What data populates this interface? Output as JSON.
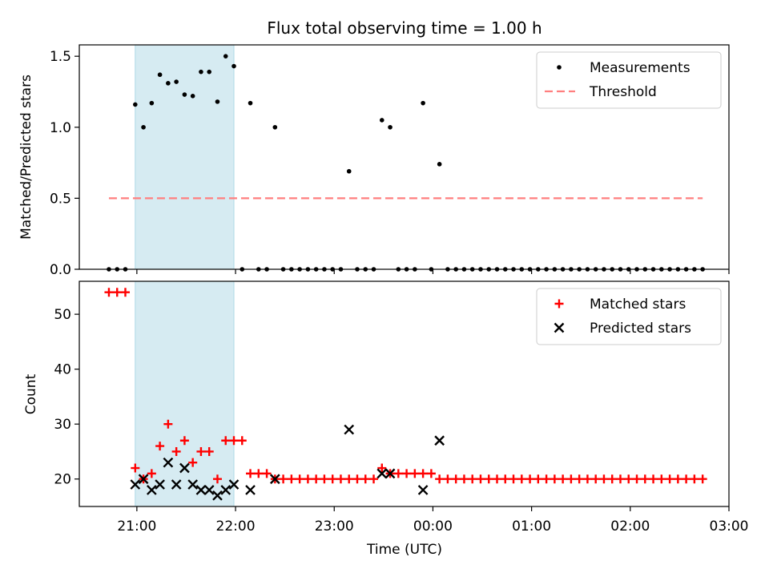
{
  "chart_data": {
    "title": "Flux total observing time = 1.00 h",
    "shaded_band": {
      "start": "20:59",
      "end": "21:59",
      "color": "#add8e6"
    },
    "x_axis": {
      "label": "Time (UTC)",
      "ticks": [
        "21:00",
        "22:00",
        "23:00",
        "00:00",
        "01:00",
        "02:00",
        "03:00"
      ],
      "range": [
        "20:25",
        "03:00"
      ]
    },
    "panels": [
      {
        "type": "scatter",
        "ylabel": "Matched/Predicted stars",
        "ylim": [
          0,
          1.58
        ],
        "yticks": [
          "0.0",
          "0.5",
          "1.0",
          "1.5"
        ],
        "legend_position": "top-right",
        "series": [
          {
            "name": "Measurements",
            "kind": "scatter",
            "color": "#000000",
            "times": [
              "20:43",
              "20:48",
              "20:53",
              "20:59",
              "21:04",
              "21:09",
              "21:14",
              "21:19",
              "21:24",
              "21:29",
              "21:34",
              "21:39",
              "21:44",
              "21:49",
              "21:54",
              "21:59",
              "22:04",
              "22:09",
              "22:14",
              "22:19",
              "22:24",
              "22:29",
              "22:34",
              "22:39",
              "22:44",
              "22:49",
              "22:54",
              "22:59",
              "23:04",
              "23:09",
              "23:14",
              "23:19",
              "23:24",
              "23:29",
              "23:34",
              "23:39",
              "23:44",
              "23:49",
              "23:54",
              "23:59",
              "00:04",
              "00:09",
              "00:14",
              "00:19",
              "00:24",
              "00:29",
              "00:34",
              "00:39",
              "00:44",
              "00:49",
              "00:54",
              "00:59",
              "01:04",
              "01:09",
              "01:14",
              "01:19",
              "01:24",
              "01:29",
              "01:34",
              "01:39",
              "01:44",
              "01:49",
              "01:54",
              "01:59",
              "02:04",
              "02:09",
              "02:14",
              "02:19",
              "02:24",
              "02:29",
              "02:34",
              "02:39",
              "02:44"
            ],
            "values": [
              0,
              0,
              0,
              1.16,
              1.0,
              1.17,
              1.37,
              1.31,
              1.32,
              1.23,
              1.22,
              1.39,
              1.39,
              1.18,
              1.5,
              1.43,
              0,
              1.17,
              0,
              0,
              1.0,
              0,
              0,
              0,
              0,
              0,
              0,
              0,
              0,
              0.69,
              0,
              0,
              0,
              1.05,
              1.0,
              0,
              0,
              0,
              1.17,
              0,
              0.74,
              0,
              0,
              0,
              0,
              0,
              0,
              0,
              0,
              0,
              0,
              0,
              0,
              0,
              0,
              0,
              0,
              0,
              0,
              0,
              0,
              0,
              0,
              0,
              0,
              0,
              0,
              0,
              0,
              0,
              0,
              0,
              0
            ]
          },
          {
            "name": "Threshold",
            "kind": "line",
            "color": "#ff7f7f",
            "times": [
              "20:43",
              "02:44"
            ],
            "values": [
              0.5,
              0.5
            ]
          }
        ]
      },
      {
        "type": "scatter",
        "ylabel": "Count",
        "ylim": [
          15,
          56
        ],
        "yticks": [
          "20",
          "30",
          "40",
          "50"
        ],
        "legend_position": "top-right",
        "series": [
          {
            "name": "Matched stars",
            "kind": "plus",
            "color": "#ff0000",
            "times": [
              "20:43",
              "20:48",
              "20:53",
              "20:59",
              "21:04",
              "21:09",
              "21:14",
              "21:19",
              "21:24",
              "21:29",
              "21:34",
              "21:39",
              "21:44",
              "21:49",
              "21:54",
              "21:59",
              "22:04",
              "22:09",
              "22:14",
              "22:19",
              "22:24",
              "22:29",
              "22:34",
              "22:39",
              "22:44",
              "22:49",
              "22:54",
              "22:59",
              "23:04",
              "23:09",
              "23:14",
              "23:19",
              "23:24",
              "23:29",
              "23:34",
              "23:39",
              "23:44",
              "23:49",
              "23:54",
              "23:59",
              "00:04",
              "00:09",
              "00:14",
              "00:19",
              "00:24",
              "00:29",
              "00:34",
              "00:39",
              "00:44",
              "00:49",
              "00:54",
              "00:59",
              "01:04",
              "01:09",
              "01:14",
              "01:19",
              "01:24",
              "01:29",
              "01:34",
              "01:39",
              "01:44",
              "01:49",
              "01:54",
              "01:59",
              "02:04",
              "02:09",
              "02:14",
              "02:19",
              "02:24",
              "02:29",
              "02:34",
              "02:39",
              "02:44"
            ],
            "values": [
              54,
              54,
              54,
              22,
              20,
              21,
              26,
              30,
              25,
              27,
              23,
              25,
              25,
              20,
              27,
              27,
              27,
              21,
              21,
              21,
              20,
              20,
              20,
              20,
              20,
              20,
              20,
              20,
              20,
              20,
              20,
              20,
              20,
              22,
              21,
              21,
              21,
              21,
              21,
              21,
              20,
              20,
              20,
              20,
              20,
              20,
              20,
              20,
              20,
              20,
              20,
              20,
              20,
              20,
              20,
              20,
              20,
              20,
              20,
              20,
              20,
              20,
              20,
              20,
              20,
              20,
              20,
              20,
              20,
              20,
              20,
              20,
              20
            ]
          },
          {
            "name": "Predicted stars",
            "kind": "x",
            "color": "#000000",
            "times": [
              "20:59",
              "21:04",
              "21:09",
              "21:14",
              "21:19",
              "21:24",
              "21:29",
              "21:34",
              "21:39",
              "21:44",
              "21:49",
              "21:54",
              "21:59",
              "22:09",
              "22:24",
              "23:09",
              "23:29",
              "23:34",
              "23:54",
              "00:04"
            ],
            "values": [
              19,
              20,
              18,
              19,
              23,
              19,
              22,
              19,
              18,
              18,
              17,
              18,
              19,
              18,
              20,
              29,
              21,
              21,
              18,
              27
            ]
          }
        ]
      }
    ]
  }
}
